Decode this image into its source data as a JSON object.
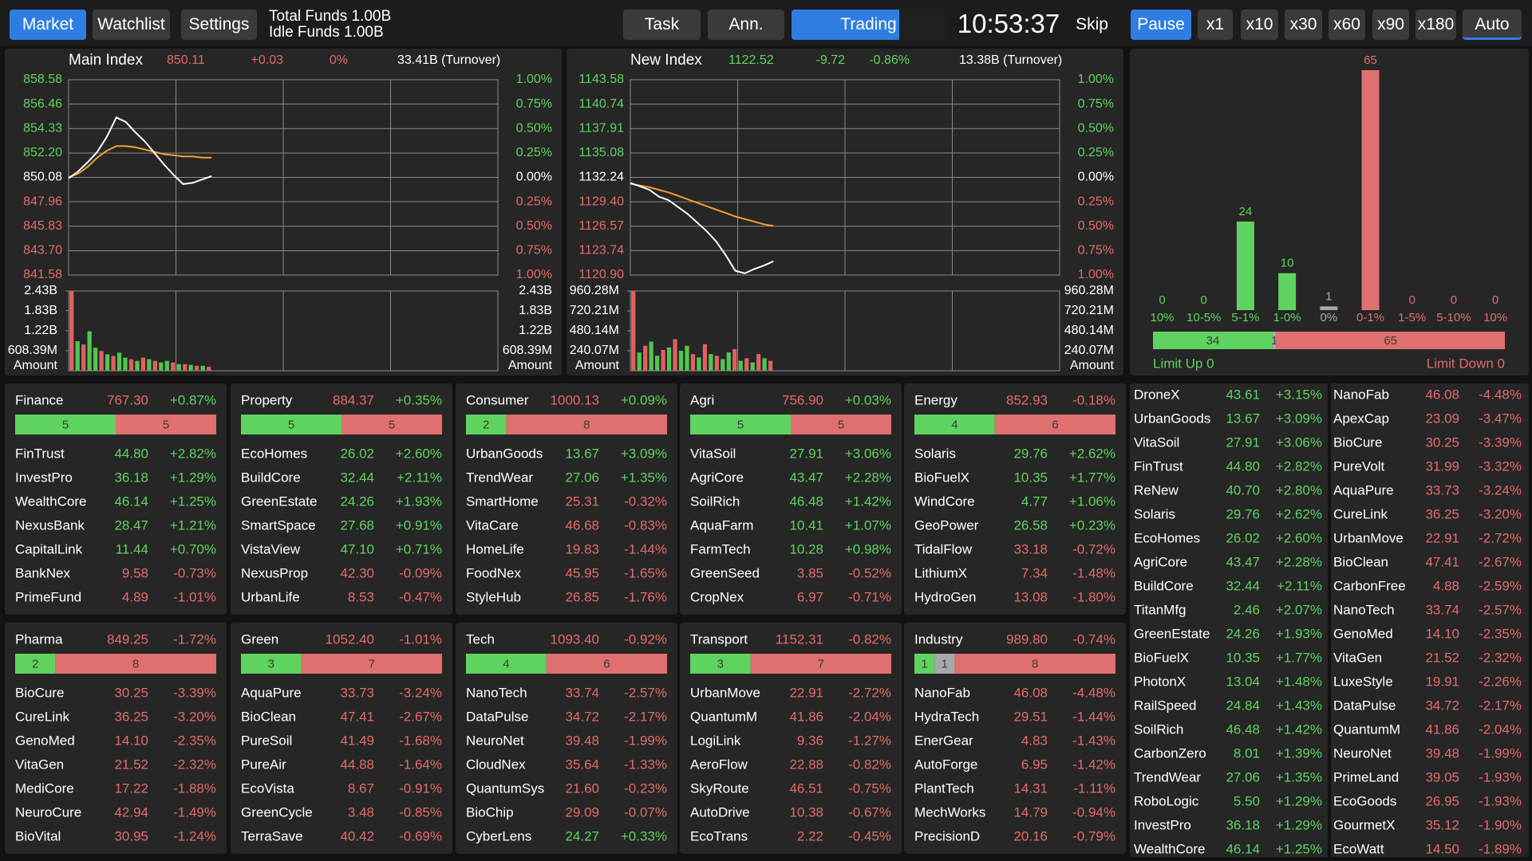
{
  "toolbar": {
    "nav": [
      "Market",
      "Watchlist",
      "Settings"
    ],
    "total_funds": "Total Funds 1.00B",
    "idle_funds": "Idle Funds 1.00B",
    "tabs": [
      "Task",
      "Ann.",
      "Trading"
    ],
    "clock": "10:53:37",
    "controls": [
      "Skip",
      "Pause",
      "x1",
      "x10",
      "x30",
      "x60",
      "x90",
      "x180",
      "Auto"
    ]
  },
  "indices": [
    {
      "name": "Main Index",
      "value": "850.11",
      "change": "+0.03",
      "pct": "0%",
      "turnover": "33.41B (Turnover)",
      "color": "#e06666",
      "ylim": [
        841.58,
        858.58
      ],
      "yticks": [
        858.58,
        856.46,
        854.33,
        {
          "value": 852.2,
          "label": "852.20"
        },
        850.08,
        847.96,
        845.83,
        {
          "value": 843.7,
          "label": "843.70"
        },
        841.58
      ],
      "y2lim": [
        -1,
        1
      ],
      "y2ticks": [
        {
          "value": 1,
          "label": "1.00%"
        },
        {
          "value": 0.75,
          "label": "0.75%"
        },
        {
          "value": 0.5,
          "label": "0.50%"
        },
        {
          "value": 0.25,
          "label": "0.25%"
        },
        {
          "value": 0,
          "label": "0.00%"
        },
        {
          "value": -0.25,
          "label": "0.25%"
        },
        {
          "value": -0.5,
          "label": "0.50%"
        },
        {
          "value": -0.75,
          "label": "0.75%"
        },
        {
          "value": -1,
          "label": "1.00%"
        }
      ],
      "line_color": "#ffffff",
      "average_color": "#f0a030",
      "price": [
        850.0,
        850.6,
        851.4,
        852.3,
        853.6,
        855.3,
        854.9,
        854.0,
        853.2,
        852.2,
        851.2,
        850.3,
        849.5,
        849.6,
        849.9,
        850.2
      ],
      "average": [
        850.1,
        850.4,
        851.0,
        851.8,
        852.4,
        852.8,
        852.8,
        852.7,
        852.5,
        852.3,
        852.1,
        852.0,
        851.9,
        851.9,
        851.8,
        851.8
      ],
      "volume": {
        "ylim": [
          0,
          2430000000
        ],
        "label": "Amount",
        "yticks": [
          {
            "value": 2430000000,
            "label": "2.43B"
          },
          {
            "value": 1830000000,
            "label": "1.83B"
          },
          {
            "value": 1220000000,
            "label": "1.22B"
          },
          {
            "value": 608390000,
            "label": "608.39M"
          }
        ],
        "series": [
          {
            "color": "#4fc64f",
            "values": [
              null,
              900000000,
              null,
              1200000000,
              700000000,
              null,
              500000000,
              null,
              550000000,
              400000000,
              null,
              300000000,
              null,
              350000000,
              null,
              250000000,
              300000000,
              null,
              200000000,
              null,
              180000000,
              null,
              150000000,
              null
            ]
          },
          {
            "color": "#e06060",
            "values": [
              2430000000,
              null,
              800000000,
              null,
              null,
              600000000,
              null,
              450000000,
              null,
              null,
              350000000,
              null,
              400000000,
              null,
              300000000,
              null,
              null,
              250000000,
              null,
              200000000,
              null,
              150000000,
              null,
              120000000
            ]
          }
        ]
      }
    },
    {
      "name": "New Index",
      "value": "1122.52",
      "change": "-9.72",
      "pct": "-0.86%",
      "turnover": "13.38B (Turnover)",
      "color": "#5fd35f",
      "ylim": [
        1120.9,
        1143.58
      ],
      "yticks": [
        1143.58,
        1140.74,
        1137.91,
        1135.08,
        1132.24,
        {
          "value": 1129.4,
          "label": "1129.40"
        },
        1126.57,
        1123.74,
        {
          "value": 1120.9,
          "label": "1120.90"
        }
      ],
      "y2lim": [
        -1,
        1
      ],
      "y2ticks": [
        {
          "value": 1,
          "label": "1.00%"
        },
        {
          "value": 0.75,
          "label": "0.75%"
        },
        {
          "value": 0.5,
          "label": "0.50%"
        },
        {
          "value": 0.25,
          "label": "0.25%"
        },
        {
          "value": 0,
          "label": "0.00%"
        },
        {
          "value": -0.25,
          "label": "0.25%"
        },
        {
          "value": -0.5,
          "label": "0.50%"
        },
        {
          "value": -0.75,
          "label": "0.75%"
        },
        {
          "value": -1,
          "label": "1.00%"
        }
      ],
      "line_color": "#ffffff",
      "average_color": "#f0a030",
      "price": [
        1131.6,
        1131.2,
        1130.8,
        1130.0,
        1129.6,
        1128.8,
        1128.0,
        1127.0,
        1126.0,
        1124.8,
        1123.2,
        1121.4,
        1121.1,
        1121.6,
        1122.0,
        1122.5
      ],
      "average": [
        1131.5,
        1131.3,
        1131.1,
        1130.8,
        1130.5,
        1130.1,
        1129.7,
        1129.3,
        1128.9,
        1128.5,
        1128.1,
        1127.7,
        1127.4,
        1127.1,
        1126.8,
        1126.6
      ],
      "volume": {
        "ylim": [
          0,
          960280000
        ],
        "label": "Amount",
        "yticks": [
          {
            "value": 960280000,
            "label": "960.28M"
          },
          {
            "value": 720210000,
            "label": "720.21M"
          },
          {
            "value": 480140000,
            "label": "480.14M"
          },
          {
            "value": 240070000,
            "label": "240.07M"
          }
        ],
        "series": [
          {
            "color": "#4fc64f",
            "values": [
              null,
              220000000,
              null,
              350000000,
              180000000,
              null,
              280000000,
              null,
              240000000,
              300000000,
              null,
              160000000,
              null,
              200000000,
              null,
              140000000,
              220000000,
              null,
              120000000,
              null,
              100000000,
              null,
              150000000,
              null
            ]
          },
          {
            "color": "#e06060",
            "values": [
              960280000,
              null,
              300000000,
              null,
              null,
              250000000,
              null,
              380000000,
              null,
              null,
              200000000,
              null,
              320000000,
              null,
              180000000,
              null,
              null,
              260000000,
              null,
              150000000,
              null,
              200000000,
              null,
              120000000
            ]
          }
        ]
      }
    }
  ],
  "distribution": {
    "categories": [
      "10%",
      "10-5%",
      "5-1%",
      "1-0%",
      "0%",
      "0-1%",
      "1-5%",
      "5-10%",
      "10%"
    ],
    "values": [
      0,
      0,
      24,
      10,
      1,
      65,
      0,
      0,
      0
    ],
    "ylim": [
      0,
      65
    ],
    "breadth": {
      "up": 34,
      "flat": 1,
      "down": 65
    },
    "limit_up": "Limit Up 0",
    "limit_down": "Limit Down 0"
  },
  "sectors": [
    {
      "name": "Finance",
      "value": "767.30",
      "pct": "+0.87%",
      "breadth": {
        "up": 5,
        "down": 5
      },
      "stocks": [
        [
          "FinTrust",
          "44.80",
          "+2.82%"
        ],
        [
          "InvestPro",
          "36.18",
          "+1.29%"
        ],
        [
          "WealthCore",
          "46.14",
          "+1.25%"
        ],
        [
          "NexusBank",
          "28.47",
          "+1.21%"
        ],
        [
          "CapitalLink",
          "11.44",
          "+0.70%"
        ],
        [
          "BankNex",
          "9.58",
          "-0.73%"
        ],
        [
          "PrimeFund",
          "4.89",
          "-1.01%"
        ]
      ]
    },
    {
      "name": "Property",
      "value": "884.37",
      "pct": "+0.35%",
      "breadth": {
        "up": 5,
        "down": 5
      },
      "stocks": [
        [
          "EcoHomes",
          "26.02",
          "+2.60%"
        ],
        [
          "BuildCore",
          "32.44",
          "+2.11%"
        ],
        [
          "GreenEstate",
          "24.26",
          "+1.93%"
        ],
        [
          "SmartSpace",
          "27.68",
          "+0.91%"
        ],
        [
          "VistaView",
          "47.10",
          "+0.71%"
        ],
        [
          "NexusProp",
          "42.30",
          "-0.09%"
        ],
        [
          "UrbanLife",
          "8.53",
          "-0.47%"
        ]
      ]
    },
    {
      "name": "Consumer",
      "value": "1000.13",
      "pct": "+0.09%",
      "breadth": {
        "up": 2,
        "down": 8
      },
      "stocks": [
        [
          "UrbanGoods",
          "13.67",
          "+3.09%"
        ],
        [
          "TrendWear",
          "27.06",
          "+1.35%"
        ],
        [
          "SmartHome",
          "25.31",
          "-0.32%"
        ],
        [
          "VitaCare",
          "46.68",
          "-0.83%"
        ],
        [
          "HomeLife",
          "19.83",
          "-1.44%"
        ],
        [
          "FoodNex",
          "45.95",
          "-1.65%"
        ],
        [
          "StyleHub",
          "26.85",
          "-1.76%"
        ]
      ]
    },
    {
      "name": "Agri",
      "value": "756.90",
      "pct": "+0.03%",
      "breadth": {
        "up": 5,
        "down": 5
      },
      "stocks": [
        [
          "VitaSoil",
          "27.91",
          "+3.06%"
        ],
        [
          "AgriCore",
          "43.47",
          "+2.28%"
        ],
        [
          "SoilRich",
          "46.48",
          "+1.42%"
        ],
        [
          "AquaFarm",
          "10.41",
          "+1.07%"
        ],
        [
          "FarmTech",
          "10.28",
          "+0.98%"
        ],
        [
          "GreenSeed",
          "3.85",
          "-0.52%"
        ],
        [
          "CropNex",
          "6.97",
          "-0.71%"
        ]
      ]
    },
    {
      "name": "Energy",
      "value": "852.93",
      "pct": "-0.18%",
      "breadth": {
        "up": 4,
        "down": 6
      },
      "stocks": [
        [
          "Solaris",
          "29.76",
          "+2.62%"
        ],
        [
          "BioFuelX",
          "10.35",
          "+1.77%"
        ],
        [
          "WindCore",
          "4.77",
          "+1.06%"
        ],
        [
          "GeoPower",
          "26.58",
          "+0.23%"
        ],
        [
          "TidalFlow",
          "33.18",
          "-0.72%"
        ],
        [
          "LithiumX",
          "7.34",
          "-1.48%"
        ],
        [
          "HydroGen",
          "13.08",
          "-1.80%"
        ]
      ]
    },
    {
      "name": "Pharma",
      "value": "849.25",
      "pct": "-1.72%",
      "breadth": {
        "up": 2,
        "down": 8
      },
      "stocks": [
        [
          "BioCure",
          "30.25",
          "-3.39%"
        ],
        [
          "CureLink",
          "36.25",
          "-3.20%"
        ],
        [
          "GenoMed",
          "14.10",
          "-2.35%"
        ],
        [
          "VitaGen",
          "21.52",
          "-2.32%"
        ],
        [
          "MediCore",
          "17.22",
          "-1.88%"
        ],
        [
          "NeuroCure",
          "42.94",
          "-1.49%"
        ],
        [
          "BioVital",
          "30.95",
          "-1.24%"
        ]
      ]
    },
    {
      "name": "Green",
      "value": "1052.40",
      "pct": "-1.01%",
      "breadth": {
        "up": 3,
        "down": 7
      },
      "stocks": [
        [
          "AquaPure",
          "33.73",
          "-3.24%"
        ],
        [
          "BioClean",
          "47.41",
          "-2.67%"
        ],
        [
          "PureSoil",
          "41.49",
          "-1.68%"
        ],
        [
          "PureAir",
          "44.88",
          "-1.64%"
        ],
        [
          "EcoVista",
          "8.67",
          "-0.91%"
        ],
        [
          "GreenCycle",
          "3.48",
          "-0.85%"
        ],
        [
          "TerraSave",
          "40.42",
          "-0.69%"
        ]
      ]
    },
    {
      "name": "Tech",
      "value": "1093.40",
      "pct": "-0.92%",
      "breadth": {
        "up": 4,
        "down": 6
      },
      "stocks": [
        [
          "NanoTech",
          "33.74",
          "-2.57%"
        ],
        [
          "DataPulse",
          "34.72",
          "-2.17%"
        ],
        [
          "NeuroNet",
          "39.48",
          "-1.99%"
        ],
        [
          "CloudNex",
          "35.64",
          "-1.33%"
        ],
        [
          "QuantumSys",
          "21.60",
          "-0.23%"
        ],
        [
          "BioChip",
          "29.09",
          "-0.07%"
        ],
        [
          "CyberLens",
          "24.27",
          "+0.33%"
        ]
      ]
    },
    {
      "name": "Transport",
      "value": "1152.31",
      "pct": "-0.82%",
      "breadth": {
        "up": 3,
        "down": 7
      },
      "stocks": [
        [
          "UrbanMove",
          "22.91",
          "-2.72%"
        ],
        [
          "QuantumM",
          "41.86",
          "-2.04%"
        ],
        [
          "LogiLink",
          "9.36",
          "-1.27%"
        ],
        [
          "AeroFlow",
          "22.88",
          "-0.82%"
        ],
        [
          "SkyRoute",
          "46.51",
          "-0.75%"
        ],
        [
          "AutoDrive",
          "10.38",
          "-0.67%"
        ],
        [
          "EcoTrans",
          "2.22",
          "-0.45%"
        ]
      ]
    },
    {
      "name": "Industry",
      "value": "989.80",
      "pct": "-0.74%",
      "breadth": {
        "up": 1,
        "flat": 1,
        "down": 8
      },
      "stocks": [
        [
          "NanoFab",
          "46.08",
          "-4.48%"
        ],
        [
          "HydraTech",
          "29.51",
          "-1.44%"
        ],
        [
          "EnerGear",
          "4.83",
          "-1.43%"
        ],
        [
          "AutoForge",
          "6.95",
          "-1.42%"
        ],
        [
          "PlantTech",
          "14.31",
          "-1.11%"
        ],
        [
          "MechWorks",
          "14.79",
          "-0.94%"
        ],
        [
          "PrecisionD",
          "20.16",
          "-0.79%"
        ]
      ]
    }
  ],
  "movers": [
    [
      [
        "DroneX",
        "43.61",
        "+3.15%"
      ],
      [
        "UrbanGoods",
        "13.67",
        "+3.09%"
      ],
      [
        "VitaSoil",
        "27.91",
        "+3.06%"
      ],
      [
        "FinTrust",
        "44.80",
        "+2.82%"
      ],
      [
        "ReNew",
        "40.70",
        "+2.80%"
      ],
      [
        "Solaris",
        "29.76",
        "+2.62%"
      ],
      [
        "EcoHomes",
        "26.02",
        "+2.60%"
      ],
      [
        "AgriCore",
        "43.47",
        "+2.28%"
      ],
      [
        "BuildCore",
        "32.44",
        "+2.11%"
      ],
      [
        "TitanMfg",
        "2.46",
        "+2.07%"
      ],
      [
        "GreenEstate",
        "24.26",
        "+1.93%"
      ],
      [
        "BioFuelX",
        "10.35",
        "+1.77%"
      ],
      [
        "PhotonX",
        "13.04",
        "+1.48%"
      ],
      [
        "RailSpeed",
        "24.84",
        "+1.43%"
      ],
      [
        "SoilRich",
        "46.48",
        "+1.42%"
      ],
      [
        "CarbonZero",
        "8.01",
        "+1.39%"
      ],
      [
        "TrendWear",
        "27.06",
        "+1.35%"
      ],
      [
        "RoboLogic",
        "5.50",
        "+1.29%"
      ],
      [
        "InvestPro",
        "36.18",
        "+1.29%"
      ],
      [
        "WealthCore",
        "46.14",
        "+1.25%"
      ]
    ],
    [
      [
        "NanoFab",
        "46.08",
        "-4.48%"
      ],
      [
        "ApexCap",
        "23.09",
        "-3.47%"
      ],
      [
        "BioCure",
        "30.25",
        "-3.39%"
      ],
      [
        "PureVolt",
        "31.99",
        "-3.32%"
      ],
      [
        "AquaPure",
        "33.73",
        "-3.24%"
      ],
      [
        "CureLink",
        "36.25",
        "-3.20%"
      ],
      [
        "UrbanMove",
        "22.91",
        "-2.72%"
      ],
      [
        "BioClean",
        "47.41",
        "-2.67%"
      ],
      [
        "CarbonFree",
        "4.88",
        "-2.59%"
      ],
      [
        "NanoTech",
        "33.74",
        "-2.57%"
      ],
      [
        "GenoMed",
        "14.10",
        "-2.35%"
      ],
      [
        "VitaGen",
        "21.52",
        "-2.32%"
      ],
      [
        "LuxeStyle",
        "19.91",
        "-2.26%"
      ],
      [
        "DataPulse",
        "34.72",
        "-2.17%"
      ],
      [
        "QuantumM",
        "41.86",
        "-2.04%"
      ],
      [
        "NeuroNet",
        "39.48",
        "-1.99%"
      ],
      [
        "PrimeLand",
        "39.05",
        "-1.93%"
      ],
      [
        "EcoGoods",
        "26.95",
        "-1.93%"
      ],
      [
        "GourmetX",
        "35.12",
        "-1.90%"
      ],
      [
        "EcoWatt",
        "14.50",
        "-1.89%"
      ]
    ]
  ]
}
